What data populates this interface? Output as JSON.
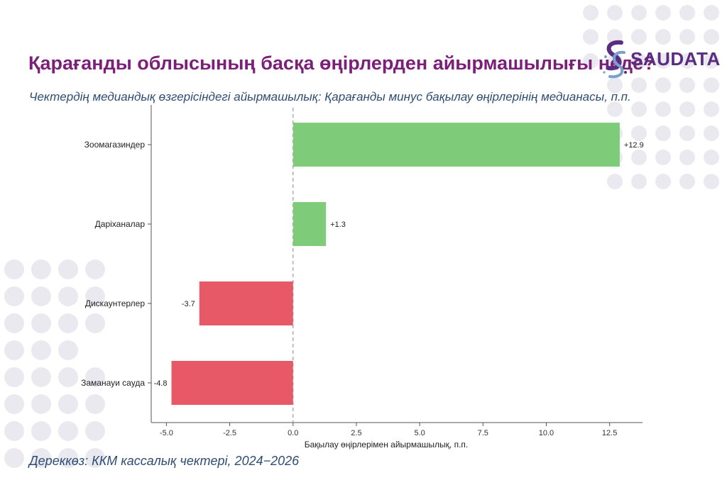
{
  "header": {
    "title": "Қарағанды облысының басқа өңірлерден айырмашылығы неде?",
    "subtitle": "Чектердің медиандық өзгерісіндегі айырмашылық: Қарағанды минус бақылау өңірлерінің медианасы, п.п."
  },
  "logo": {
    "text": "SAUDATA",
    "icon": "double-s-dots-icon"
  },
  "footer": {
    "source": "Дереккөз: ККМ кассалық чектері, 2024−2026"
  },
  "colors": {
    "positive": "#7ecb7a",
    "negative": "#e85968",
    "title": "#7b1f78",
    "subtitle": "#2d4d73",
    "axis": "#555555",
    "zero_line": "#999999",
    "dots": "#e9e9ef"
  },
  "chart_data": {
    "type": "bar",
    "orientation": "horizontal",
    "categories": [
      "Зоомагазиндер",
      "Даріханалар",
      "Дискаунтерлер",
      "Заманауи сауда"
    ],
    "values": [
      12.9,
      1.3,
      -3.7,
      -4.8
    ],
    "data_labels": [
      "+12.9",
      "+1.3",
      "-3.7",
      "-4.8"
    ],
    "xlabel": "Бақылау өңірлерімен айырмашылық, п.п.",
    "ylabel": "",
    "xlim": [
      -5.6,
      13.8
    ],
    "xticks": [
      -5.0,
      -2.5,
      0.0,
      2.5,
      5.0,
      7.5,
      10.0,
      12.5
    ],
    "xtick_labels": [
      "-5.0",
      "-2.5",
      "0.0",
      "2.5",
      "5.0",
      "7.5",
      "10.0",
      "12.5"
    ],
    "zero_reference_line": "dashed",
    "grid": false,
    "legend": "none"
  }
}
